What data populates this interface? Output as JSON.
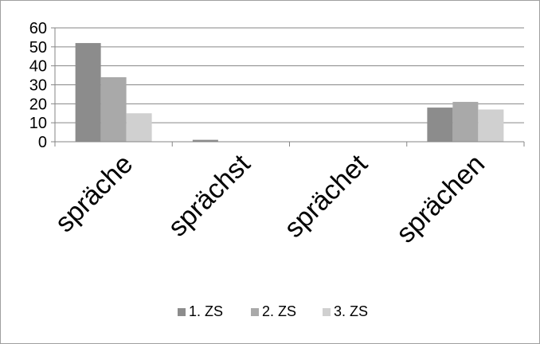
{
  "chart_data": {
    "type": "bar",
    "categories": [
      "spräche",
      "sprächst",
      "sprächet",
      "sprächen"
    ],
    "series": [
      {
        "name": "1. ZS",
        "values": [
          52,
          1,
          0,
          18
        ],
        "color": "#8c8c8c"
      },
      {
        "name": "2. ZS",
        "values": [
          34,
          0,
          0,
          21
        ],
        "color": "#a9a9a9"
      },
      {
        "name": "3. ZS",
        "values": [
          15,
          0,
          0,
          17
        ],
        "color": "#d0d0d0"
      }
    ],
    "ylim": [
      0,
      60
    ],
    "yticks": [
      0,
      10,
      20,
      30,
      40,
      50,
      60
    ],
    "grid": true,
    "legend": "bottom"
  }
}
